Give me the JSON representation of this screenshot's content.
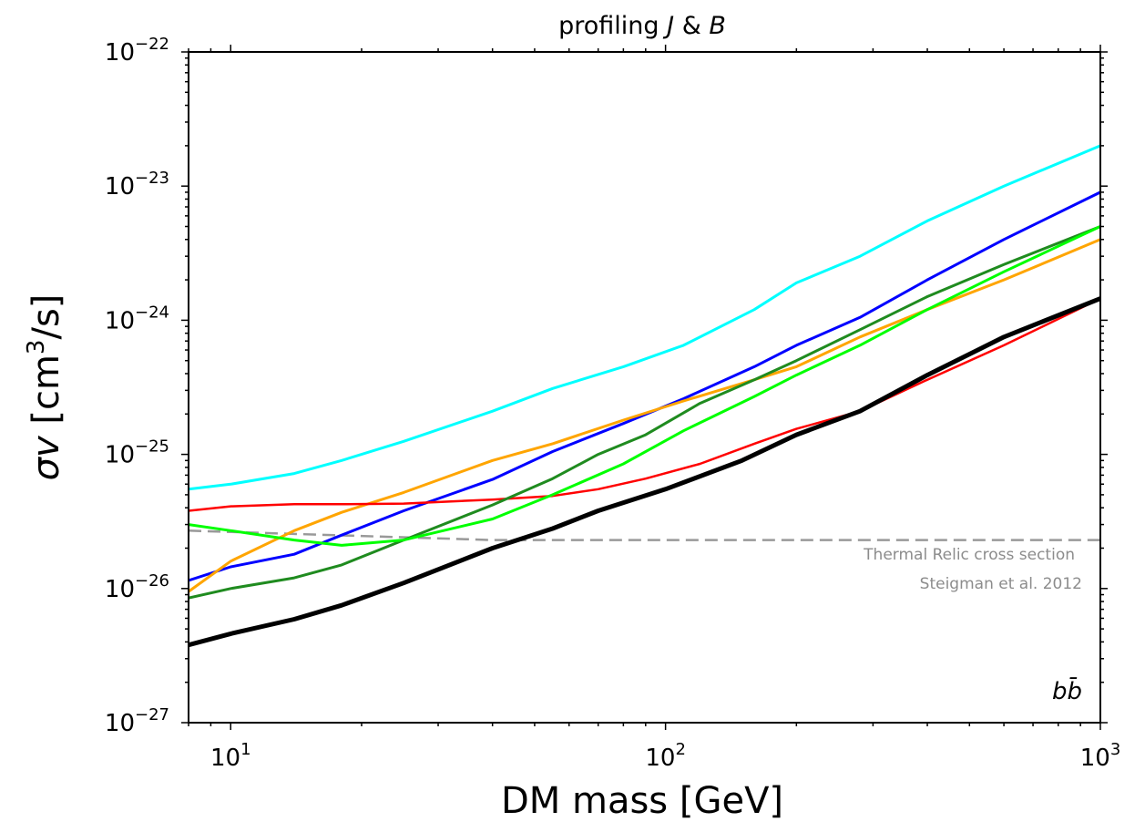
{
  "chart_data": {
    "type": "line",
    "title_plain": "profiling ",
    "title_J": "J",
    "title_amp": " & ",
    "title_B": "B",
    "xlabel": "DM mass [GeV]",
    "ylabel_main": "σv",
    "ylabel_units_pre": " [cm",
    "ylabel_units_exp": "3",
    "ylabel_units_post": "/s]",
    "x_scale": "log",
    "y_scale": "log",
    "xlim": [
      8,
      1000
    ],
    "ylim": [
      1e-27,
      1e-22
    ],
    "x_ticks": [
      {
        "value": 10,
        "base": "10",
        "exp": "1"
      },
      {
        "value": 100,
        "base": "10",
        "exp": "2"
      },
      {
        "value": 1000,
        "base": "10",
        "exp": "3"
      }
    ],
    "y_ticks": [
      {
        "value": 1e-27,
        "base": "10",
        "exp": "−27"
      },
      {
        "value": 1e-26,
        "base": "10",
        "exp": "−26"
      },
      {
        "value": 1e-25,
        "base": "10",
        "exp": "−25"
      },
      {
        "value": 1e-24,
        "base": "10",
        "exp": "−24"
      },
      {
        "value": 1e-23,
        "base": "10",
        "exp": "−23"
      },
      {
        "value": 1e-22,
        "base": "10",
        "exp": "−22"
      }
    ],
    "grid": false,
    "series": [
      {
        "color": "#00ffff",
        "width": 3,
        "x": [
          8,
          10,
          14,
          18,
          25,
          40,
          55,
          80,
          110,
          160,
          200,
          280,
          400,
          600,
          1000
        ],
        "y": [
          5.5e-26,
          6e-26,
          7.2e-26,
          9e-26,
          1.25e-25,
          2.1e-25,
          3.1e-25,
          4.5e-25,
          6.5e-25,
          1.2e-24,
          1.9e-24,
          3e-24,
          5.5e-24,
          1e-23,
          2e-23
        ]
      },
      {
        "color": "#0000ff",
        "width": 3,
        "x": [
          8,
          10,
          14,
          18,
          25,
          40,
          55,
          80,
          110,
          160,
          200,
          280,
          400,
          600,
          1000
        ],
        "y": [
          1.15e-26,
          1.45e-26,
          1.8e-26,
          2.5e-26,
          3.8e-26,
          6.5e-26,
          1.05e-25,
          1.7e-25,
          2.6e-25,
          4.5e-25,
          6.5e-25,
          1.05e-24,
          2e-24,
          4e-24,
          9e-24
        ]
      },
      {
        "color": "#ffa500",
        "width": 3,
        "x": [
          8,
          10,
          14,
          18,
          25,
          40,
          55,
          80,
          110,
          160,
          200,
          280,
          400,
          600,
          1000
        ],
        "y": [
          9.5e-27,
          1.6e-26,
          2.7e-26,
          3.7e-26,
          5.2e-26,
          9e-26,
          1.2e-25,
          1.8e-25,
          2.5e-25,
          3.6e-25,
          4.5e-25,
          7.5e-25,
          1.2e-24,
          2e-24,
          4e-24
        ]
      },
      {
        "color": "#ff0000",
        "width": 2.5,
        "x": [
          8,
          10,
          14,
          18,
          25,
          40,
          55,
          70,
          90,
          120,
          160,
          200,
          280,
          400,
          600,
          1000
        ],
        "y": [
          3.8e-26,
          4.1e-26,
          4.25e-26,
          4.25e-26,
          4.3e-26,
          4.6e-26,
          4.9e-26,
          5.5e-26,
          6.6e-26,
          8.5e-26,
          1.2e-25,
          1.55e-25,
          2.1e-25,
          3.6e-25,
          6.5e-25,
          1.45e-24
        ]
      },
      {
        "color": "#1f8b1f",
        "width": 3,
        "x": [
          8,
          10,
          14,
          18,
          25,
          40,
          55,
          70,
          90,
          120,
          160,
          200,
          280,
          400,
          600,
          1000
        ],
        "y": [
          8.5e-27,
          1e-26,
          1.2e-26,
          1.5e-26,
          2.3e-26,
          4.2e-26,
          6.6e-26,
          1e-25,
          1.4e-25,
          2.4e-25,
          3.6e-25,
          5e-25,
          8.5e-25,
          1.5e-24,
          2.6e-24,
          5e-24
        ]
      },
      {
        "color": "#00ff00",
        "width": 3,
        "x": [
          8,
          10,
          14,
          18,
          25,
          40,
          55,
          80,
          110,
          160,
          200,
          280,
          400,
          600,
          1000
        ],
        "y": [
          3e-26,
          2.7e-26,
          2.3e-26,
          2.1e-26,
          2.3e-26,
          3.3e-26,
          5e-26,
          8.5e-26,
          1.5e-25,
          2.7e-25,
          3.9e-25,
          6.5e-25,
          1.2e-24,
          2.3e-24,
          5e-24
        ]
      },
      {
        "color": "#000000",
        "width": 5,
        "x": [
          8,
          10,
          14,
          18,
          25,
          40,
          55,
          70,
          100,
          150,
          200,
          280,
          400,
          600,
          1000
        ],
        "y": [
          3.8e-27,
          4.6e-27,
          5.9e-27,
          7.5e-27,
          1.1e-26,
          2e-26,
          2.8e-26,
          3.8e-26,
          5.5e-26,
          9e-26,
          1.4e-25,
          2.1e-25,
          3.9e-25,
          7.5e-25,
          1.45e-24
        ]
      }
    ],
    "reference_line": {
      "color": "#999999",
      "style": "dashed",
      "x": [
        8,
        40,
        1000
      ],
      "y": [
        2.7e-26,
        2.3e-26,
        2.3e-26
      ],
      "label_line1": "Thermal Relic cross section",
      "label_line2": "Steigman et al. 2012"
    },
    "channel_label": "bb̄"
  }
}
